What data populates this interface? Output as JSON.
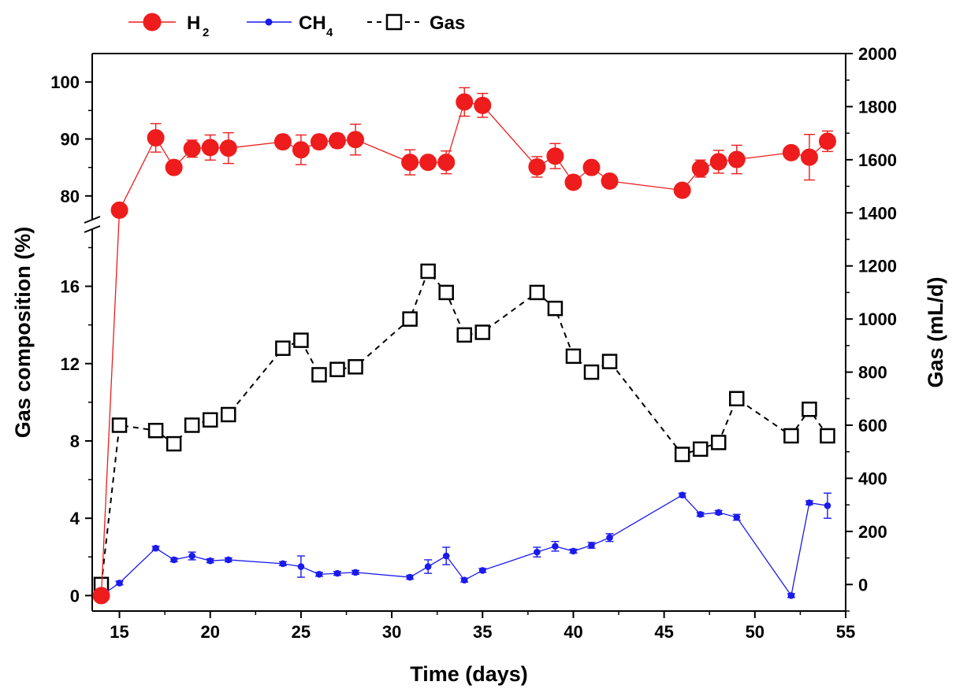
{
  "chart_data": {
    "type": "line",
    "title": "",
    "xlabel": "Time (days)",
    "ylabel_left": "Gas composition (%)",
    "ylabel_right": "Gas (mL/d)",
    "xlim": [
      13.5,
      55
    ],
    "x_ticks": [
      15,
      20,
      25,
      30,
      35,
      40,
      45,
      50,
      55
    ],
    "y_left_upper_ticks": [
      80,
      90,
      100
    ],
    "y_left_lower_ticks": [
      0,
      4,
      8,
      12,
      16
    ],
    "y_left_upper_range": [
      75,
      105
    ],
    "y_left_lower_range": [
      -0.8,
      19.2
    ],
    "y_right_ticks": [
      0,
      200,
      400,
      600,
      800,
      1000,
      1200,
      1400,
      1600,
      1800,
      2000
    ],
    "y_right_range": [
      -100,
      2000
    ],
    "axis_break": "left axis broken between 19 and 75",
    "legend_position": "top",
    "series": [
      {
        "name": "H2",
        "name_main": "H",
        "name_sub": "2",
        "axis": "left",
        "color": "#ee1c1c",
        "marker": "filled-circle",
        "line": "solid",
        "x": [
          14,
          15,
          17,
          18,
          19,
          20,
          21,
          24,
          25,
          26,
          27,
          28,
          31,
          32,
          33,
          34,
          35,
          38,
          39,
          40,
          41,
          42,
          46,
          47,
          48,
          49,
          52,
          53,
          54
        ],
        "values": [
          0,
          77.5,
          90.2,
          85,
          88.3,
          88.5,
          88.4,
          89.5,
          88.1,
          89.5,
          89.7,
          89.9,
          85.9,
          85.9,
          85.9,
          96.5,
          95.9,
          85.1,
          87,
          82.4,
          85,
          82.6,
          81,
          84.8,
          86,
          86.4,
          87.6,
          86.8,
          89.6
        ],
        "errors": [
          0,
          0.8,
          2.5,
          1,
          1.5,
          2.2,
          2.7,
          1.2,
          2.6,
          1.2,
          1.2,
          2.7,
          2.2,
          1,
          2,
          2.5,
          2.1,
          1.8,
          2.2,
          1,
          1,
          1,
          1,
          1.5,
          2,
          2.5,
          1,
          4,
          1.8
        ]
      },
      {
        "name": "CH4",
        "name_main": "CH",
        "name_sub": "4",
        "axis": "left",
        "color": "#1a1aee",
        "marker": "small-filled-circle",
        "line": "solid",
        "x": [
          14,
          15,
          17,
          18,
          19,
          20,
          21,
          24,
          25,
          26,
          27,
          28,
          31,
          32,
          33,
          34,
          35,
          38,
          39,
          40,
          41,
          42,
          46,
          47,
          48,
          49,
          52,
          53,
          54
        ],
        "values": [
          0,
          0.65,
          2.45,
          1.85,
          2.05,
          1.8,
          1.85,
          1.65,
          1.5,
          1.1,
          1.15,
          1.2,
          0.95,
          1.5,
          2.05,
          0.8,
          1.3,
          2.25,
          2.55,
          2.3,
          2.6,
          3,
          5.2,
          4.2,
          4.3,
          4.05,
          0,
          4.8,
          4.65
        ],
        "errors": [
          0,
          0.1,
          0.1,
          0.1,
          0.2,
          0.1,
          0.1,
          0.1,
          0.55,
          0.1,
          0.1,
          0.1,
          0.1,
          0.35,
          0.45,
          0.1,
          0.1,
          0.25,
          0.25,
          0.1,
          0.15,
          0.2,
          0.1,
          0.1,
          0.1,
          0.15,
          0.1,
          0.1,
          0.65
        ]
      },
      {
        "name": "Gas",
        "axis": "right",
        "color": "#000000",
        "marker": "open-square",
        "line": "dashed",
        "x": [
          14,
          15,
          17,
          18,
          19,
          20,
          21,
          24,
          25,
          26,
          27,
          28,
          31,
          32,
          33,
          34,
          35,
          38,
          39,
          40,
          41,
          42,
          46,
          47,
          48,
          49,
          52,
          53,
          54
        ],
        "values": [
          0,
          600,
          580,
          530,
          600,
          620,
          640,
          890,
          920,
          790,
          810,
          820,
          1000,
          1180,
          1100,
          940,
          950,
          1100,
          1040,
          860,
          800,
          840,
          490,
          510,
          535,
          700,
          560,
          660,
          560
        ]
      }
    ]
  }
}
